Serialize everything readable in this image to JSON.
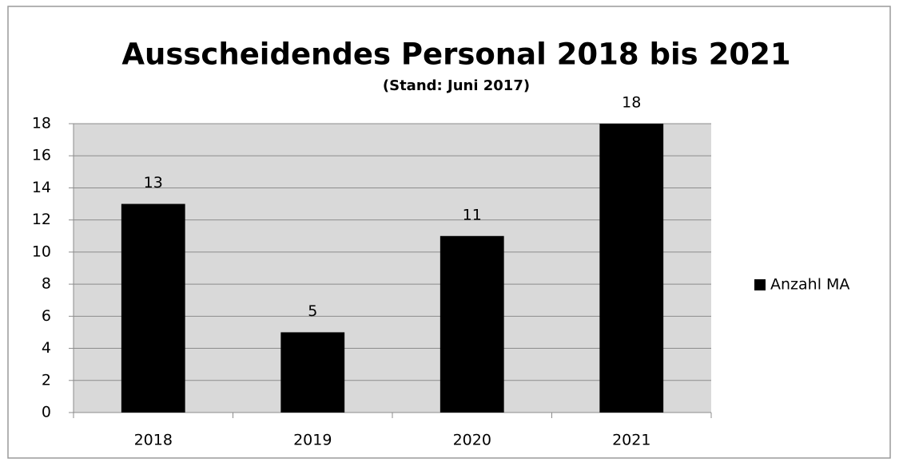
{
  "chart_data": {
    "type": "bar",
    "title": "Ausscheidendes Personal 2018 bis 2021",
    "subtitle": "(Stand: Juni 2017)",
    "categories": [
      "2018",
      "2019",
      "2020",
      "2021"
    ],
    "series": [
      {
        "name": "Anzahl MA",
        "color": "#000000",
        "values": [
          13,
          5,
          11,
          18
        ]
      }
    ],
    "ylim": [
      0,
      18
    ],
    "yticks": [
      0,
      2,
      4,
      6,
      8,
      10,
      12,
      14,
      16,
      18
    ],
    "grid": true,
    "legend": "right",
    "data_labels": true
  }
}
